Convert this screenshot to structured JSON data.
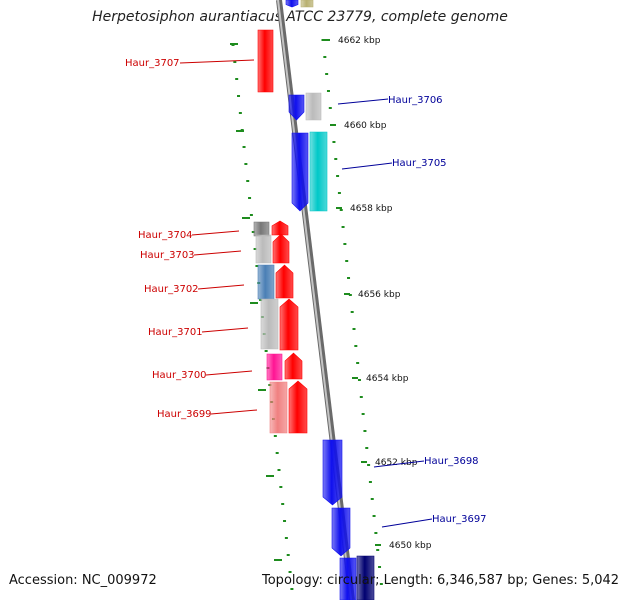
{
  "title": "Herpetosiphon aurantiacus ATCC 23779, complete genome",
  "footer": {
    "accession": "Accession: NC_009972",
    "summary": "Topology: circular; Length: 6,346,587 bp; Genes: 5,042"
  },
  "colors": {
    "backbone": "#8c8c8c",
    "tick": "#1e8c1e",
    "label_reverse": "#cc0000",
    "label_forward": "#000099"
  },
  "scale_labels": [
    {
      "label": "4662 kbp",
      "kbp": 4662
    },
    {
      "label": "4660 kbp",
      "kbp": 4660
    },
    {
      "label": "4658 kbp",
      "kbp": 4658
    },
    {
      "label": "4656 kbp",
      "kbp": 4656
    },
    {
      "label": "4654 kbp",
      "kbp": 4654
    },
    {
      "label": "4652 kbp",
      "kbp": 4652
    },
    {
      "label": "4650 kbp",
      "kbp": 4650
    }
  ],
  "gene_labels": [
    {
      "label": "Haur_3707",
      "strand": "reverse"
    },
    {
      "label": "Haur_3706",
      "strand": "forward"
    },
    {
      "label": "Haur_3705",
      "strand": "forward"
    },
    {
      "label": "Haur_3704",
      "strand": "reverse"
    },
    {
      "label": "Haur_3703",
      "strand": "reverse"
    },
    {
      "label": "Haur_3702",
      "strand": "reverse"
    },
    {
      "label": "Haur_3701",
      "strand": "reverse"
    },
    {
      "label": "Haur_3700",
      "strand": "reverse"
    },
    {
      "label": "Haur_3699",
      "strand": "reverse"
    },
    {
      "label": "Haur_3698",
      "strand": "forward"
    },
    {
      "label": "Haur_3697",
      "strand": "forward"
    }
  ],
  "feature_colors": {
    "red": "#ff0000",
    "blue": "#1010ee",
    "grey": "#bbbbbb",
    "cyan": "#00c8c8",
    "steel": "#4a7fb5",
    "magenta": "#ff1493",
    "salmon": "#f08080",
    "darkgrey": "#777777",
    "navy": "#000070",
    "olive": "#b8b070"
  }
}
